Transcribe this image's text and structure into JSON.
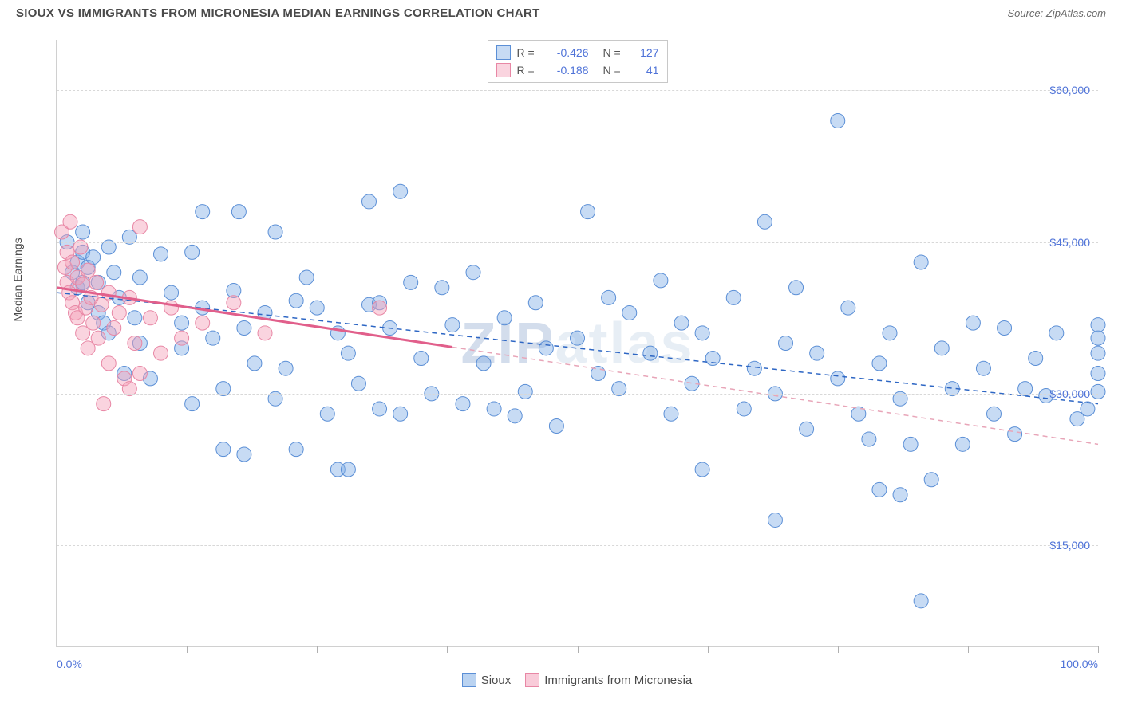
{
  "title": "SIOUX VS IMMIGRANTS FROM MICRONESIA MEDIAN EARNINGS CORRELATION CHART",
  "source": "Source: ZipAtlas.com",
  "ylabel": "Median Earnings",
  "watermark": "ZIPatlas",
  "chart": {
    "type": "scatter",
    "xlim": [
      0,
      100
    ],
    "ylim": [
      5000,
      65000
    ],
    "yticks": [
      15000,
      30000,
      45000,
      60000
    ],
    "ytick_labels": [
      "$15,000",
      "$30,000",
      "$45,000",
      "$60,000"
    ],
    "xtick_positions": [
      0,
      12.5,
      25,
      37.5,
      50,
      62.5,
      75,
      87.5,
      100
    ],
    "xtick_labels": {
      "left": "0.0%",
      "right": "100.0%"
    },
    "background_color": "#ffffff",
    "grid_color": "#d8d8d8",
    "axis_color": "#d0d0d0",
    "marker_radius": 9,
    "marker_stroke_width": 1,
    "trend_line_width": 3,
    "series": [
      {
        "name": "Sioux",
        "fill": "rgba(130,175,230,0.45)",
        "stroke": "#5b8fd6",
        "trend_color": "#2d66c4",
        "trend_dash_color": "#2d66c4",
        "R": "-0.426",
        "N": "127",
        "trend": {
          "x1": 0,
          "y1": 40000,
          "x2": 100,
          "y2": 29000,
          "extrapolate_from": 0
        },
        "points": [
          [
            1,
            45000
          ],
          [
            1.5,
            42000
          ],
          [
            2,
            43000
          ],
          [
            2,
            40500
          ],
          [
            2.5,
            44000
          ],
          [
            2.5,
            46000
          ],
          [
            2.5,
            41000
          ],
          [
            3,
            39000
          ],
          [
            3,
            42500
          ],
          [
            3.5,
            43500
          ],
          [
            4,
            38000
          ],
          [
            4,
            41000
          ],
          [
            4.5,
            37000
          ],
          [
            5,
            44500
          ],
          [
            5,
            36000
          ],
          [
            5.5,
            42000
          ],
          [
            6,
            39500
          ],
          [
            6.5,
            32000
          ],
          [
            7,
            45500
          ],
          [
            7.5,
            37500
          ],
          [
            8,
            41500
          ],
          [
            8,
            35000
          ],
          [
            9,
            31500
          ],
          [
            10,
            43800
          ],
          [
            11,
            40000
          ],
          [
            12,
            34500
          ],
          [
            12,
            37000
          ],
          [
            13,
            44000
          ],
          [
            13,
            29000
          ],
          [
            14,
            38500
          ],
          [
            14,
            48000
          ],
          [
            15,
            35500
          ],
          [
            16,
            24500
          ],
          [
            16,
            30500
          ],
          [
            17,
            40200
          ],
          [
            17.5,
            48000
          ],
          [
            18,
            36500
          ],
          [
            19,
            33000
          ],
          [
            18,
            24000
          ],
          [
            20,
            38000
          ],
          [
            21,
            46000
          ],
          [
            21,
            29500
          ],
          [
            22,
            32500
          ],
          [
            23,
            39200
          ],
          [
            23,
            24500
          ],
          [
            24,
            41500
          ],
          [
            25,
            38500
          ],
          [
            26,
            28000
          ],
          [
            27,
            36000
          ],
          [
            27,
            22500
          ],
          [
            28,
            34000
          ],
          [
            28,
            22500
          ],
          [
            29,
            31000
          ],
          [
            30,
            49000
          ],
          [
            30,
            38800
          ],
          [
            31,
            28500
          ],
          [
            31,
            39000
          ],
          [
            32,
            36500
          ],
          [
            33,
            50000
          ],
          [
            33,
            28000
          ],
          [
            34,
            41000
          ],
          [
            35,
            33500
          ],
          [
            36,
            30000
          ],
          [
            37,
            40500
          ],
          [
            38,
            36800
          ],
          [
            39,
            29000
          ],
          [
            40,
            42000
          ],
          [
            41,
            33000
          ],
          [
            42,
            28500
          ],
          [
            43,
            37500
          ],
          [
            44,
            27800
          ],
          [
            45,
            30200
          ],
          [
            46,
            39000
          ],
          [
            47,
            34500
          ],
          [
            48,
            26800
          ],
          [
            50,
            35500
          ],
          [
            51,
            48000
          ],
          [
            52,
            32000
          ],
          [
            53,
            39500
          ],
          [
            54,
            30500
          ],
          [
            55,
            38000
          ],
          [
            57,
            34000
          ],
          [
            58,
            41200
          ],
          [
            59,
            28000
          ],
          [
            60,
            37000
          ],
          [
            61,
            31000
          ],
          [
            62,
            36000
          ],
          [
            62,
            22500
          ],
          [
            63,
            33500
          ],
          [
            65,
            39500
          ],
          [
            66,
            28500
          ],
          [
            67,
            32500
          ],
          [
            68,
            47000
          ],
          [
            69,
            17500
          ],
          [
            69,
            30000
          ],
          [
            70,
            35000
          ],
          [
            71,
            40500
          ],
          [
            72,
            26500
          ],
          [
            73,
            34000
          ],
          [
            75,
            57000
          ],
          [
            75,
            31500
          ],
          [
            76,
            38500
          ],
          [
            77,
            28000
          ],
          [
            78,
            25500
          ],
          [
            79,
            33000
          ],
          [
            79,
            20500
          ],
          [
            80,
            36000
          ],
          [
            81,
            29500
          ],
          [
            81,
            20000
          ],
          [
            82,
            25000
          ],
          [
            83,
            43000
          ],
          [
            83,
            9500
          ],
          [
            84,
            21500
          ],
          [
            85,
            34500
          ],
          [
            86,
            30500
          ],
          [
            87,
            25000
          ],
          [
            88,
            37000
          ],
          [
            89,
            32500
          ],
          [
            90,
            28000
          ],
          [
            91,
            36500
          ],
          [
            92,
            26000
          ],
          [
            93,
            30500
          ],
          [
            94,
            33500
          ],
          [
            95,
            29800
          ],
          [
            96,
            36000
          ],
          [
            98,
            27500
          ],
          [
            99,
            28500
          ],
          [
            100,
            36800
          ],
          [
            100,
            35500
          ],
          [
            100,
            34000
          ],
          [
            100,
            32000
          ],
          [
            100,
            30200
          ]
        ]
      },
      {
        "name": "Immigrants from Micronesia",
        "fill": "rgba(244,160,185,0.45)",
        "stroke": "#e887a5",
        "trend_color": "#e15f8b",
        "trend_dash_color": "#e8a5b8",
        "R": "-0.188",
        "N": "41",
        "trend": {
          "x1": 0,
          "y1": 40500,
          "x2": 100,
          "y2": 25000,
          "extrapolate_from": 38
        },
        "points": [
          [
            0.5,
            46000
          ],
          [
            0.8,
            42500
          ],
          [
            1,
            41000
          ],
          [
            1,
            44000
          ],
          [
            1.2,
            40000
          ],
          [
            1.3,
            47000
          ],
          [
            1.5,
            39000
          ],
          [
            1.5,
            43000
          ],
          [
            1.8,
            38000
          ],
          [
            2,
            41500
          ],
          [
            2,
            37500
          ],
          [
            2.3,
            44500
          ],
          [
            2.5,
            40800
          ],
          [
            2.5,
            36000
          ],
          [
            2.8,
            38500
          ],
          [
            3,
            42200
          ],
          [
            3,
            34500
          ],
          [
            3.3,
            39500
          ],
          [
            3.5,
            37000
          ],
          [
            3.8,
            41000
          ],
          [
            4,
            35500
          ],
          [
            4.3,
            38800
          ],
          [
            4.5,
            29000
          ],
          [
            5,
            33000
          ],
          [
            5,
            40000
          ],
          [
            5.5,
            36500
          ],
          [
            6,
            38000
          ],
          [
            6.5,
            31500
          ],
          [
            7,
            39500
          ],
          [
            7,
            30500
          ],
          [
            7.5,
            35000
          ],
          [
            8,
            46500
          ],
          [
            8,
            32000
          ],
          [
            9,
            37500
          ],
          [
            10,
            34000
          ],
          [
            11,
            38500
          ],
          [
            12,
            35500
          ],
          [
            14,
            37000
          ],
          [
            17,
            39000
          ],
          [
            20,
            36000
          ],
          [
            31,
            38500
          ]
        ]
      }
    ],
    "legend_bottom": [
      {
        "label": "Sioux",
        "fill": "rgba(130,175,230,0.55)",
        "stroke": "#5b8fd6"
      },
      {
        "label": "Immigrants from Micronesia",
        "fill": "rgba(244,160,185,0.55)",
        "stroke": "#e887a5"
      }
    ]
  }
}
